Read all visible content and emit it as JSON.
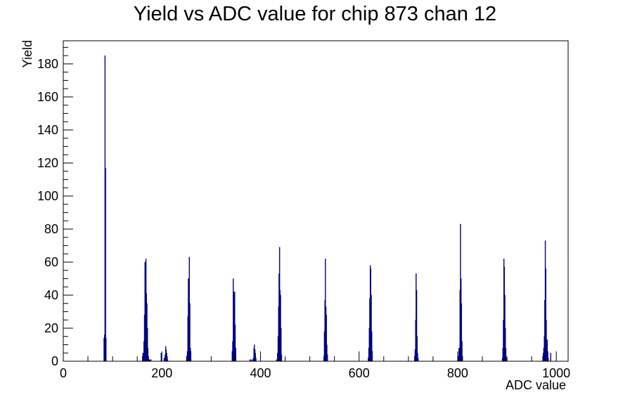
{
  "chart_data": {
    "type": "bar",
    "title": "Yield vs ADC value for chip 873 chan 12",
    "xlabel": "ADC value",
    "ylabel": "Yield",
    "xlim": [
      0,
      1024
    ],
    "ylim": [
      0,
      194
    ],
    "x_ticks": [
      0,
      200,
      400,
      600,
      800,
      1000
    ],
    "y_ticks": [
      0,
      20,
      40,
      60,
      80,
      100,
      120,
      140,
      160,
      180
    ],
    "grid": false,
    "legend": "none",
    "colors": {
      "bars": "#000080",
      "axes": "#000000",
      "background": "#ffffff"
    },
    "bin_width": 1,
    "bins": [
      [
        82,
        14
      ],
      [
        83,
        16
      ],
      [
        84,
        185
      ],
      [
        85,
        117
      ],
      [
        86,
        14
      ],
      [
        160,
        3
      ],
      [
        161,
        5
      ],
      [
        162,
        4
      ],
      [
        163,
        12
      ],
      [
        164,
        28
      ],
      [
        165,
        60
      ],
      [
        166,
        45
      ],
      [
        167,
        62
      ],
      [
        168,
        41
      ],
      [
        169,
        35
      ],
      [
        170,
        20
      ],
      [
        171,
        8
      ],
      [
        172,
        3
      ],
      [
        173,
        1
      ],
      [
        175,
        1
      ],
      [
        177,
        1
      ],
      [
        198,
        5
      ],
      [
        204,
        2
      ],
      [
        206,
        4
      ],
      [
        207,
        9
      ],
      [
        208,
        7
      ],
      [
        209,
        5
      ],
      [
        210,
        3
      ],
      [
        211,
        1
      ],
      [
        250,
        3
      ],
      [
        251,
        6
      ],
      [
        252,
        27
      ],
      [
        253,
        50
      ],
      [
        254,
        25
      ],
      [
        255,
        63
      ],
      [
        256,
        35
      ],
      [
        257,
        8
      ],
      [
        258,
        6
      ],
      [
        342,
        6
      ],
      [
        343,
        12
      ],
      [
        344,
        50
      ],
      [
        345,
        42
      ],
      [
        346,
        38
      ],
      [
        347,
        42
      ],
      [
        348,
        22
      ],
      [
        349,
        8
      ],
      [
        378,
        1
      ],
      [
        380,
        1
      ],
      [
        383,
        1
      ],
      [
        385,
        2
      ],
      [
        386,
        8
      ],
      [
        387,
        10
      ],
      [
        388,
        7
      ],
      [
        389,
        5
      ],
      [
        390,
        2
      ],
      [
        432,
        1
      ],
      [
        434,
        5
      ],
      [
        435,
        15
      ],
      [
        436,
        33
      ],
      [
        437,
        53
      ],
      [
        438,
        69
      ],
      [
        439,
        43
      ],
      [
        440,
        40
      ],
      [
        441,
        20
      ],
      [
        442,
        4
      ],
      [
        528,
        3
      ],
      [
        529,
        18
      ],
      [
        530,
        37
      ],
      [
        531,
        62
      ],
      [
        532,
        33
      ],
      [
        533,
        28
      ],
      [
        534,
        10
      ],
      [
        535,
        4
      ],
      [
        618,
        2
      ],
      [
        619,
        8
      ],
      [
        620,
        20
      ],
      [
        621,
        38
      ],
      [
        622,
        58
      ],
      [
        623,
        56
      ],
      [
        624,
        40
      ],
      [
        625,
        18
      ],
      [
        626,
        6
      ],
      [
        712,
        3
      ],
      [
        713,
        7
      ],
      [
        714,
        25
      ],
      [
        715,
        53
      ],
      [
        716,
        43
      ],
      [
        717,
        15
      ],
      [
        718,
        5
      ],
      [
        719,
        2
      ],
      [
        800,
        1
      ],
      [
        801,
        3
      ],
      [
        802,
        8
      ],
      [
        803,
        8
      ],
      [
        804,
        43
      ],
      [
        805,
        83
      ],
      [
        806,
        50
      ],
      [
        807,
        35
      ],
      [
        808,
        12
      ],
      [
        809,
        3
      ],
      [
        890,
        2
      ],
      [
        891,
        8
      ],
      [
        892,
        25
      ],
      [
        893,
        62
      ],
      [
        894,
        57
      ],
      [
        895,
        40
      ],
      [
        896,
        20
      ],
      [
        897,
        8
      ],
      [
        898,
        2
      ],
      [
        972,
        3
      ],
      [
        973,
        5
      ],
      [
        974,
        8
      ],
      [
        975,
        15
      ],
      [
        976,
        37
      ],
      [
        977,
        73
      ],
      [
        978,
        56
      ],
      [
        979,
        25
      ],
      [
        980,
        10
      ],
      [
        981,
        13
      ],
      [
        982,
        6
      ],
      [
        983,
        2
      ],
      [
        988,
        5
      ]
    ]
  }
}
